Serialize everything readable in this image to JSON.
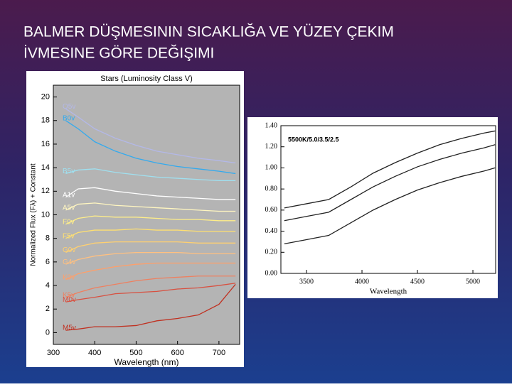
{
  "slide": {
    "title": [
      "BALMER DÜŞMESININ SICAKLIĞA VE YÜZEY ÇEKIM",
      "İVMESINE GÖRE DEĞIŞIMI"
    ]
  },
  "chart_data": [
    {
      "type": "line",
      "title": "Stars (Luminosity Class V)",
      "x_label": "Wavelength (nm)",
      "y_label": "Normalized Flux (Fλ) + Constant",
      "x": [
        330,
        360,
        400,
        450,
        500,
        550,
        600,
        650,
        700,
        740
      ],
      "xlim": [
        300,
        750
      ],
      "xticks": [
        300,
        400,
        500,
        600,
        700
      ],
      "ylim": [
        -1,
        21
      ],
      "yticks": [
        0,
        2,
        4,
        6,
        8,
        10,
        12,
        14,
        16,
        18,
        20
      ],
      "series": [
        {
          "name": "O5v",
          "color": "#b3b8e8",
          "values": [
            19,
            18.3,
            17.3,
            16.5,
            15.9,
            15.4,
            15.1,
            14.8,
            14.6,
            14.4
          ]
        },
        {
          "name": "B0v",
          "color": "#33aaee",
          "values": [
            18,
            17.3,
            16.2,
            15.4,
            14.8,
            14.4,
            14.1,
            13.9,
            13.7,
            13.5
          ]
        },
        {
          "name": "B5v",
          "color": "#9fe0f0",
          "values": [
            13.5,
            13.8,
            13.9,
            13.6,
            13.4,
            13.2,
            13.1,
            13.0,
            12.9,
            12.9
          ]
        },
        {
          "name": "A1v",
          "color": "#ffffff",
          "values": [
            11.5,
            12.2,
            12.3,
            12.0,
            11.8,
            11.6,
            11.5,
            11.4,
            11.3,
            11.3
          ]
        },
        {
          "name": "A5v",
          "color": "#fff6c0",
          "values": [
            10.4,
            10.9,
            11.0,
            10.8,
            10.7,
            10.6,
            10.5,
            10.4,
            10.3,
            10.3
          ]
        },
        {
          "name": "F0v",
          "color": "#ffee88",
          "values": [
            9.2,
            9.7,
            9.9,
            9.8,
            9.8,
            9.7,
            9.6,
            9.6,
            9.5,
            9.5
          ]
        },
        {
          "name": "F5v",
          "color": "#ffe070",
          "values": [
            8.0,
            8.5,
            8.7,
            8.7,
            8.8,
            8.7,
            8.7,
            8.6,
            8.6,
            8.6
          ]
        },
        {
          "name": "G0v",
          "color": "#ffd070",
          "values": [
            6.8,
            7.3,
            7.6,
            7.7,
            7.7,
            7.7,
            7.7,
            7.6,
            7.6,
            7.6
          ]
        },
        {
          "name": "G4v",
          "color": "#ffc080",
          "values": [
            5.8,
            6.2,
            6.5,
            6.7,
            6.8,
            6.8,
            6.8,
            6.7,
            6.7,
            6.7
          ]
        },
        {
          "name": "K0v",
          "color": "#ff9f6a",
          "values": [
            4.5,
            5.0,
            5.3,
            5.6,
            5.8,
            5.9,
            5.9,
            5.9,
            5.9,
            5.9
          ]
        },
        {
          "name": "K5v",
          "color": "#ee8060",
          "values": [
            3.0,
            3.4,
            3.8,
            4.1,
            4.4,
            4.6,
            4.7,
            4.8,
            4.8,
            4.8
          ]
        },
        {
          "name": "M0v",
          "color": "#d85040",
          "values": [
            2.6,
            2.8,
            3.0,
            3.3,
            3.4,
            3.5,
            3.7,
            3.8,
            4.0,
            4.2
          ]
        },
        {
          "name": "M5v",
          "color": "#c03020",
          "values": [
            0.2,
            0.3,
            0.5,
            0.5,
            0.6,
            1.0,
            1.2,
            1.5,
            2.4,
            4.1
          ]
        }
      ]
    },
    {
      "type": "line",
      "annotation": "5500K/5.0/3.5/2.5",
      "x_label": "Wavelength",
      "x": [
        3300,
        3500,
        3700,
        3900,
        4100,
        4300,
        4500,
        4700,
        4900,
        5100,
        5200
      ],
      "xlim": [
        3269,
        5205
      ],
      "xticks": [
        3500,
        4000,
        4500,
        5000
      ],
      "ylim": [
        0,
        1.4
      ],
      "yticks": [
        {
          "value": 0,
          "label": "0.00"
        },
        {
          "value": 0.2,
          "label": "0.20"
        },
        {
          "value": 0.4,
          "label": "0.40"
        },
        {
          "value": 0.6,
          "label": "0.60"
        },
        {
          "value": 0.8,
          "label": "0.80"
        },
        {
          "value": 1,
          "label": "1.00"
        },
        {
          "value": 1.2,
          "label": "1.20"
        },
        {
          "value": 1.4,
          "label": "1.40"
        }
      ],
      "series": [
        {
          "color": "#222222",
          "values": [
            0.62,
            0.66,
            0.7,
            0.82,
            0.95,
            1.05,
            1.14,
            1.22,
            1.28,
            1.33,
            1.35
          ]
        },
        {
          "color": "#222222",
          "values": [
            0.5,
            0.54,
            0.58,
            0.7,
            0.82,
            0.92,
            1.01,
            1.08,
            1.14,
            1.19,
            1.22
          ]
        },
        {
          "color": "#222222",
          "values": [
            0.28,
            0.32,
            0.36,
            0.48,
            0.6,
            0.7,
            0.79,
            0.86,
            0.92,
            0.97,
            1.0
          ]
        }
      ]
    }
  ]
}
